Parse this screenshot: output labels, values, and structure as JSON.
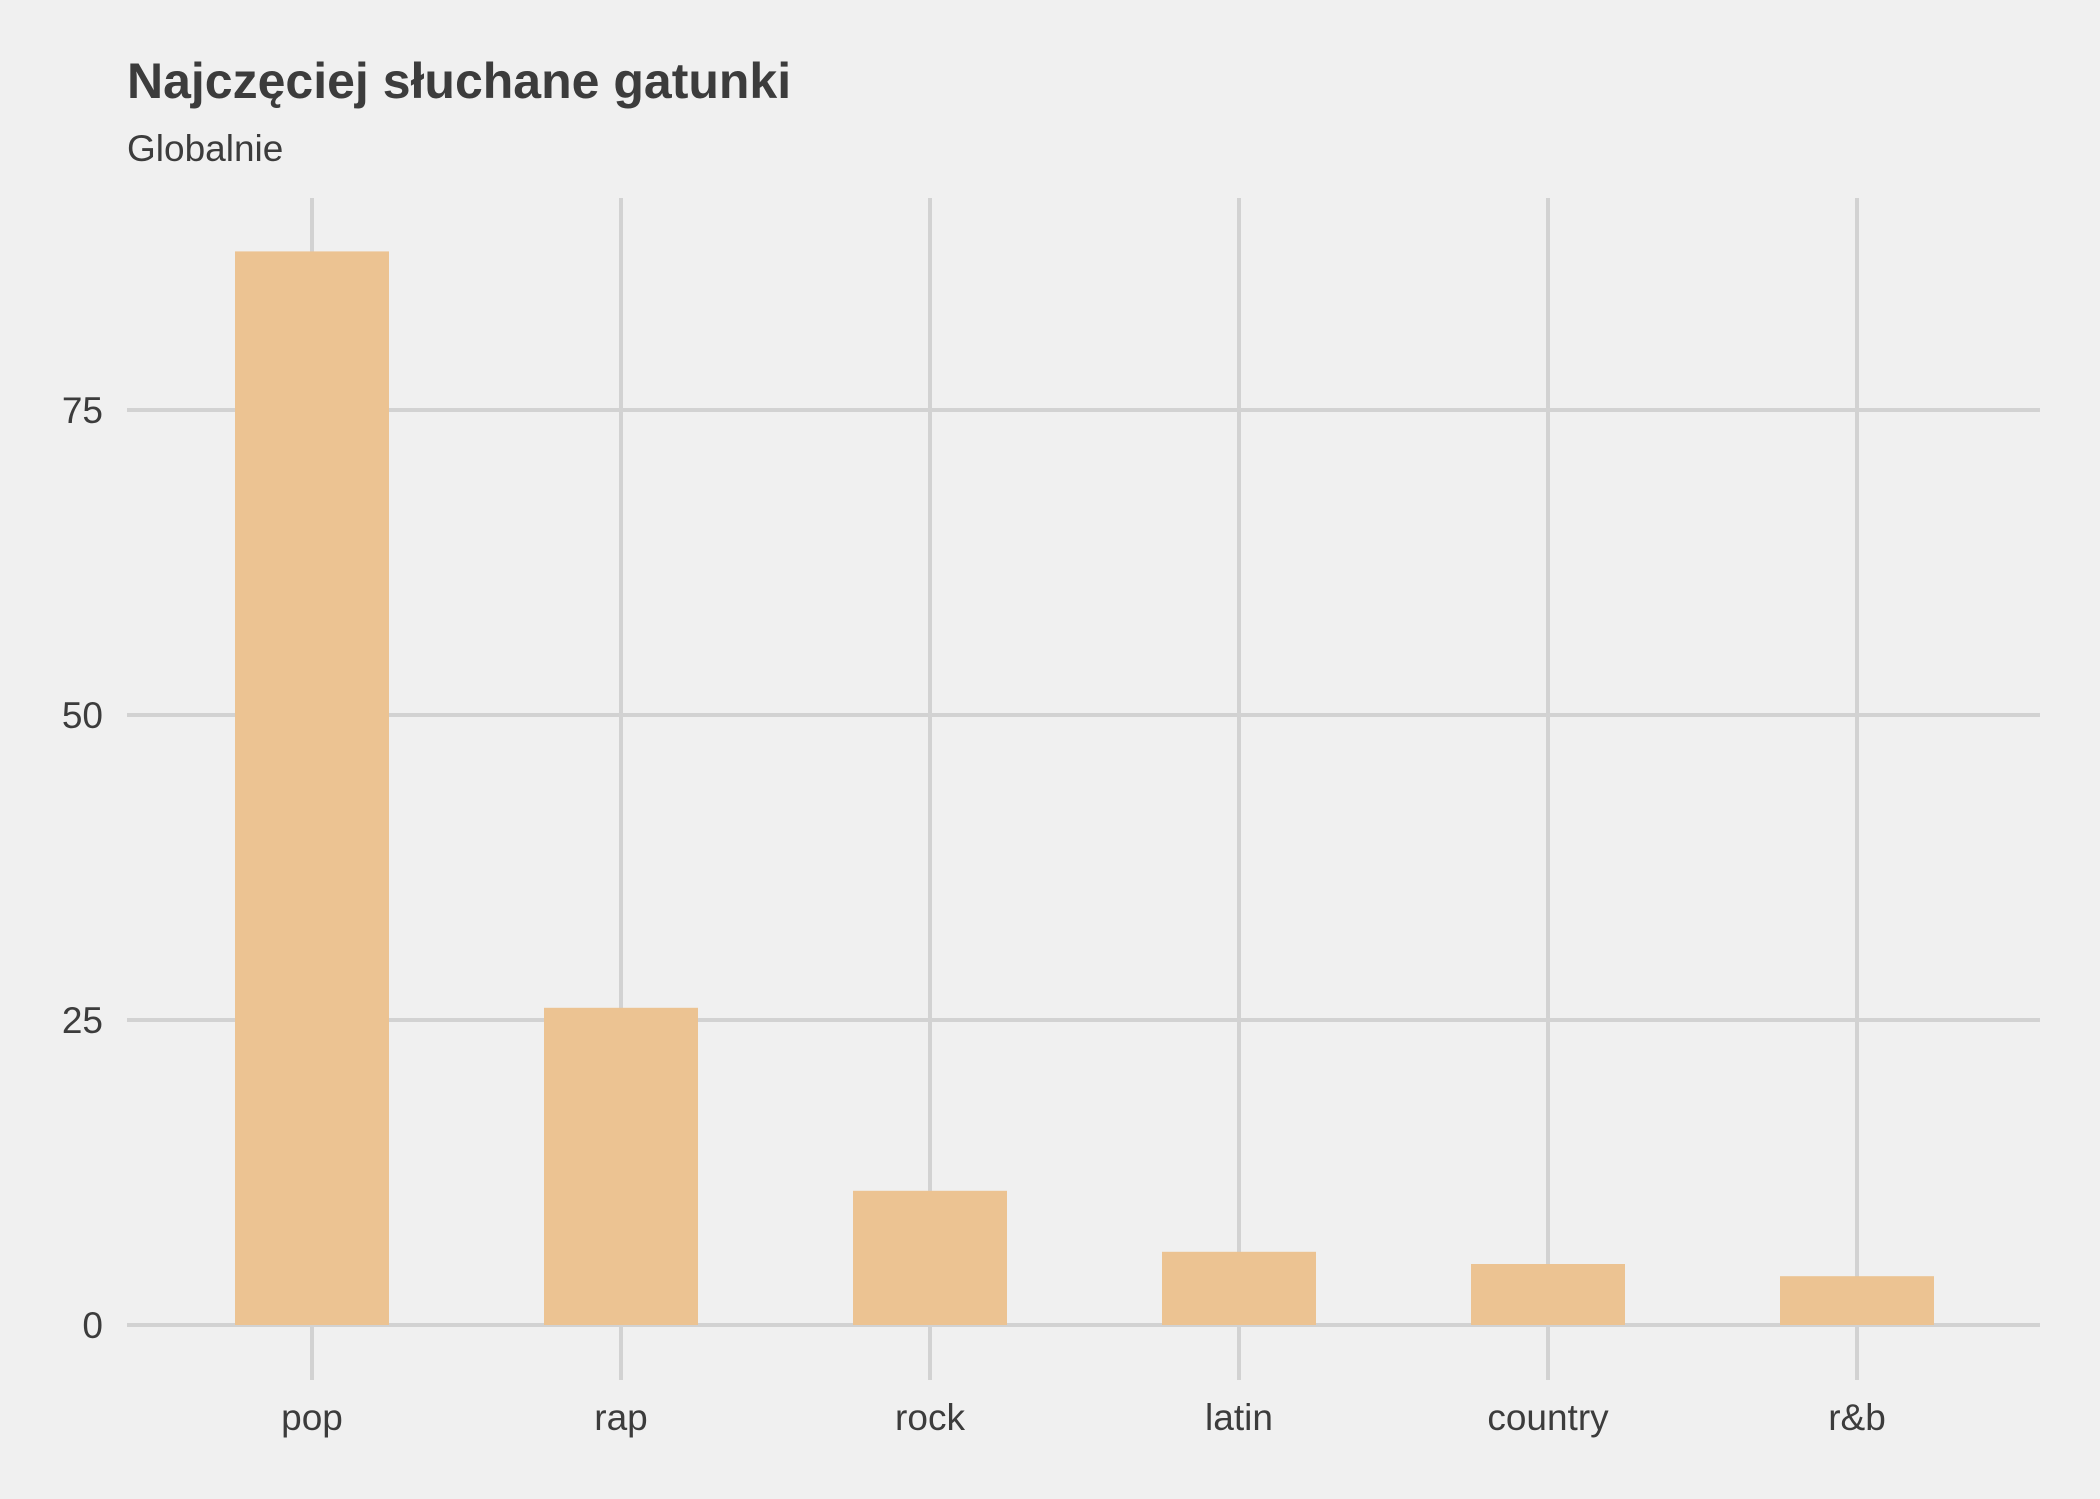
{
  "chart_data": {
    "type": "bar",
    "title": "Najczęciej słuchane gatunki",
    "subtitle": "Globalnie",
    "xlabel": "",
    "ylabel": "",
    "categories": [
      "pop",
      "rap",
      "rock",
      "latin",
      "country",
      "r&b"
    ],
    "values": [
      88,
      26,
      11,
      6,
      5,
      4
    ],
    "ylim": [
      0,
      92.5
    ],
    "yticks": [
      0,
      25,
      50,
      75
    ],
    "grid": true,
    "legend": "none",
    "bar_color": "#ecc392",
    "grid_color": "#d2d2d2",
    "background_color": "#f0f0f0",
    "text_color": "#3c3c3c"
  }
}
